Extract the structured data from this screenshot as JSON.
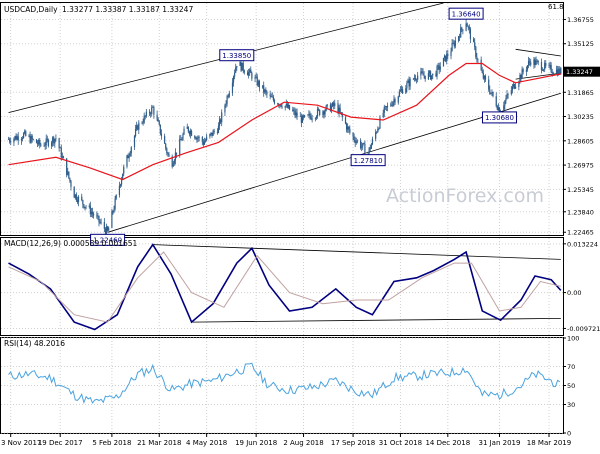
{
  "chart_data": [
    {
      "type": "candlestick",
      "panel": "price",
      "header": {
        "symbol": "USDCAD,Daily",
        "ohlc": "1.33277 1.33387 1.33187 1.33247"
      },
      "corner_label": "61.8",
      "watermark": "ActionForex.com",
      "ylim": [
        1.2228,
        1.3786
      ],
      "y_ticks": [
        {
          "value": 1.36755,
          "label": "1.36755"
        },
        {
          "value": 1.35125,
          "label": "1.35125"
        },
        {
          "value": 1.31865,
          "label": "1.31865"
        },
        {
          "value": 1.30235,
          "label": "1.30235"
        },
        {
          "value": 1.28605,
          "label": "1.28605"
        },
        {
          "value": 1.26975,
          "label": "1.26975"
        },
        {
          "value": 1.25345,
          "label": "1.25345"
        },
        {
          "value": 1.2384,
          "label": "1.23840"
        },
        {
          "value": 1.22465,
          "label": "1.22465"
        }
      ],
      "current_price": {
        "value": 1.33247,
        "label": "1.33247"
      },
      "annotations": [
        {
          "x": "2018-02-01",
          "y": 1.2246,
          "label": "1.22460",
          "placement": "below"
        },
        {
          "x": "2018-06-01",
          "y": 1.3385,
          "label": "1.33850",
          "placement": "above"
        },
        {
          "x": "2018-10-01",
          "y": 1.2781,
          "label": "1.27810",
          "placement": "below"
        },
        {
          "x": "2018-12-31",
          "y": 1.3664,
          "label": "1.36640",
          "placement": "above"
        },
        {
          "x": "2019-01-31",
          "y": 1.3068,
          "label": "1.30680",
          "placement": "below"
        }
      ],
      "series": [
        {
          "key": "close",
          "x": [
            "2017-11-01",
            "2017-11-15",
            "2017-12-01",
            "2017-12-15",
            "2018-01-01",
            "2018-01-15",
            "2018-02-01",
            "2018-02-15",
            "2018-03-01",
            "2018-03-15",
            "2018-04-01",
            "2018-04-15",
            "2018-05-01",
            "2018-05-15",
            "2018-06-01",
            "2018-06-15",
            "2018-07-01",
            "2018-07-15",
            "2018-08-01",
            "2018-08-15",
            "2018-09-01",
            "2018-09-15",
            "2018-10-01",
            "2018-10-15",
            "2018-11-01",
            "2018-11-15",
            "2018-12-01",
            "2018-12-15",
            "2018-12-31",
            "2019-01-15",
            "2019-01-31",
            "2019-02-15",
            "2019-03-01",
            "2019-03-15",
            "2019-03-29"
          ],
          "values": [
            1.287,
            1.29,
            1.283,
            1.288,
            1.25,
            1.24,
            1.2246,
            1.265,
            1.296,
            1.308,
            1.27,
            1.295,
            1.285,
            1.295,
            1.3385,
            1.33,
            1.315,
            1.31,
            1.3,
            1.305,
            1.31,
            1.29,
            1.2781,
            1.305,
            1.32,
            1.33,
            1.33,
            1.345,
            1.3664,
            1.33,
            1.3068,
            1.325,
            1.34,
            1.335,
            1.3325
          ]
        },
        {
          "key": "ma",
          "x": [
            "2017-11-01",
            "2017-12-15",
            "2018-01-15",
            "2018-02-15",
            "2018-03-15",
            "2018-04-15",
            "2018-05-15",
            "2018-06-15",
            "2018-07-15",
            "2018-08-15",
            "2018-09-15",
            "2018-10-15",
            "2018-11-15",
            "2018-12-15",
            "2018-12-31",
            "2019-01-15",
            "2019-01-31",
            "2019-02-15",
            "2019-03-01",
            "2019-03-29"
          ],
          "values": [
            1.27,
            1.275,
            1.268,
            1.26,
            1.27,
            1.278,
            1.285,
            1.3,
            1.312,
            1.31,
            1.302,
            1.3,
            1.31,
            1.33,
            1.338,
            1.338,
            1.33,
            1.325,
            1.327,
            1.331
          ]
        }
      ],
      "trend_lines": [
        {
          "name": "channel-upper",
          "from": [
            "2017-11-01",
            1.305
          ],
          "to": [
            "2018-12-10",
            1.3786
          ]
        },
        {
          "name": "channel-lower",
          "from": [
            "2018-02-01",
            1.2246
          ],
          "to": [
            "2019-03-29",
            1.318
          ]
        },
        {
          "name": "triangle-upper",
          "from": [
            "2019-02-15",
            1.3475
          ],
          "to": [
            "2019-03-29",
            1.343
          ]
        },
        {
          "name": "triangle-lower",
          "from": [
            "2019-02-15",
            1.3275
          ],
          "to": [
            "2019-03-29",
            1.3315
          ]
        }
      ]
    },
    {
      "type": "line",
      "panel": "macd",
      "header": {
        "label": "MACD(12,26,9) 0.000589 0.001651"
      },
      "ylim": [
        -0.0115,
        0.0148
      ],
      "y_ticks": [
        {
          "value": 0.013224,
          "label": "0.013224"
        },
        {
          "value": 0.0,
          "label": "0.00"
        },
        {
          "value": -0.009721,
          "label": "-0.009721"
        }
      ],
      "series": [
        {
          "key": "macd",
          "x": [
            "2017-11-01",
            "2017-11-20",
            "2017-12-10",
            "2018-01-01",
            "2018-01-20",
            "2018-02-10",
            "2018-03-01",
            "2018-03-15",
            "2018-04-01",
            "2018-04-20",
            "2018-05-10",
            "2018-06-01",
            "2018-06-15",
            "2018-07-01",
            "2018-07-20",
            "2018-08-10",
            "2018-09-01",
            "2018-09-20",
            "2018-10-05",
            "2018-10-25",
            "2018-11-15",
            "2018-12-01",
            "2018-12-20",
            "2018-12-31",
            "2019-01-15",
            "2019-02-01",
            "2019-02-20",
            "2019-03-05",
            "2019-03-20",
            "2019-03-29"
          ],
          "values": [
            0.008,
            0.005,
            0.001,
            -0.008,
            -0.01,
            -0.006,
            0.007,
            0.013,
            0.005,
            -0.008,
            -0.003,
            0.008,
            0.012,
            0.002,
            -0.005,
            -0.004,
            0.001,
            -0.004,
            -0.006,
            0.003,
            0.004,
            0.006,
            0.009,
            0.011,
            -0.005,
            -0.0075,
            -0.002,
            0.0045,
            0.0035,
            0.0006
          ]
        },
        {
          "key": "signal",
          "x": [
            "2017-11-01",
            "2017-12-01",
            "2018-01-01",
            "2018-02-01",
            "2018-03-01",
            "2018-03-25",
            "2018-04-20",
            "2018-05-20",
            "2018-06-20",
            "2018-07-20",
            "2018-08-20",
            "2018-09-20",
            "2018-10-20",
            "2018-11-20",
            "2018-12-20",
            "2019-01-05",
            "2019-01-31",
            "2019-02-20",
            "2019-03-10",
            "2019-03-29"
          ],
          "values": [
            0.007,
            0.003,
            -0.006,
            -0.008,
            0.004,
            0.011,
            0.0,
            -0.004,
            0.01,
            0.0,
            -0.003,
            -0.002,
            -0.002,
            0.004,
            0.008,
            0.008,
            -0.005,
            -0.004,
            0.003,
            0.0017
          ]
        }
      ],
      "trend_lines": [
        {
          "name": "macd-upper",
          "from": [
            "2018-03-15",
            0.013
          ],
          "to": [
            "2019-03-29",
            0.009
          ]
        },
        {
          "name": "macd-lower",
          "from": [
            "2018-04-20",
            -0.008
          ],
          "to": [
            "2019-03-29",
            -0.007
          ]
        }
      ]
    },
    {
      "type": "line",
      "panel": "rsi",
      "header": {
        "label": "RSI(14) 48.2016"
      },
      "ylim": [
        0,
        100
      ],
      "y_ticks": [
        {
          "value": 100,
          "label": "100"
        },
        {
          "value": 70,
          "label": "70"
        },
        {
          "value": 50,
          "label": "50"
        },
        {
          "value": 30,
          "label": "30"
        },
        {
          "value": 0,
          "label": "0"
        }
      ],
      "series": [
        {
          "key": "rsi",
          "x": [
            "2017-11-01",
            "2017-11-20",
            "2017-12-10",
            "2018-01-01",
            "2018-01-20",
            "2018-02-10",
            "2018-03-01",
            "2018-03-15",
            "2018-04-01",
            "2018-04-20",
            "2018-05-10",
            "2018-06-01",
            "2018-06-15",
            "2018-07-01",
            "2018-07-20",
            "2018-08-10",
            "2018-09-01",
            "2018-09-20",
            "2018-10-05",
            "2018-10-25",
            "2018-11-15",
            "2018-12-01",
            "2018-12-20",
            "2018-12-31",
            "2019-01-15",
            "2019-02-01",
            "2019-02-20",
            "2019-03-05",
            "2019-03-20",
            "2019-03-29"
          ],
          "values": [
            60,
            62,
            58,
            40,
            32,
            38,
            62,
            68,
            45,
            52,
            55,
            65,
            70,
            50,
            45,
            48,
            55,
            44,
            40,
            58,
            60,
            62,
            64,
            68,
            40,
            40,
            50,
            62,
            55,
            48.2
          ]
        }
      ]
    }
  ],
  "x_axis": {
    "ticks": [
      {
        "x": "2017-11-03",
        "label": "3 Nov 2017"
      },
      {
        "x": "2017-12-19",
        "label": "19 Dec 2017"
      },
      {
        "x": "2018-02-05",
        "label": "5 Feb 2018"
      },
      {
        "x": "2018-03-21",
        "label": "21 Mar 2018"
      },
      {
        "x": "2018-05-04",
        "label": "4 May 2018"
      },
      {
        "x": "2018-06-19",
        "label": "19 Jun 2018"
      },
      {
        "x": "2018-08-02",
        "label": "2 Aug 2018"
      },
      {
        "x": "2018-09-17",
        "label": "17 Sep 2018"
      },
      {
        "x": "2018-10-31",
        "label": "31 Oct 2018"
      },
      {
        "x": "2018-12-14",
        "label": "14 Dec 2018"
      },
      {
        "x": "2019-01-31",
        "label": "31 Jan 2019"
      },
      {
        "x": "2019-03-18",
        "label": "18 Mar 2019"
      }
    ]
  },
  "colors": {
    "candle": "#2e5c8a",
    "ma": "#e8141c",
    "macd": "#000080",
    "signal": "#c0a0a0",
    "rsi": "#4aa3df",
    "trend": "#000000",
    "grid": "#d0d0d0",
    "label_border": "#000080",
    "watermark": "#c8ccd4",
    "text": "#000000"
  }
}
